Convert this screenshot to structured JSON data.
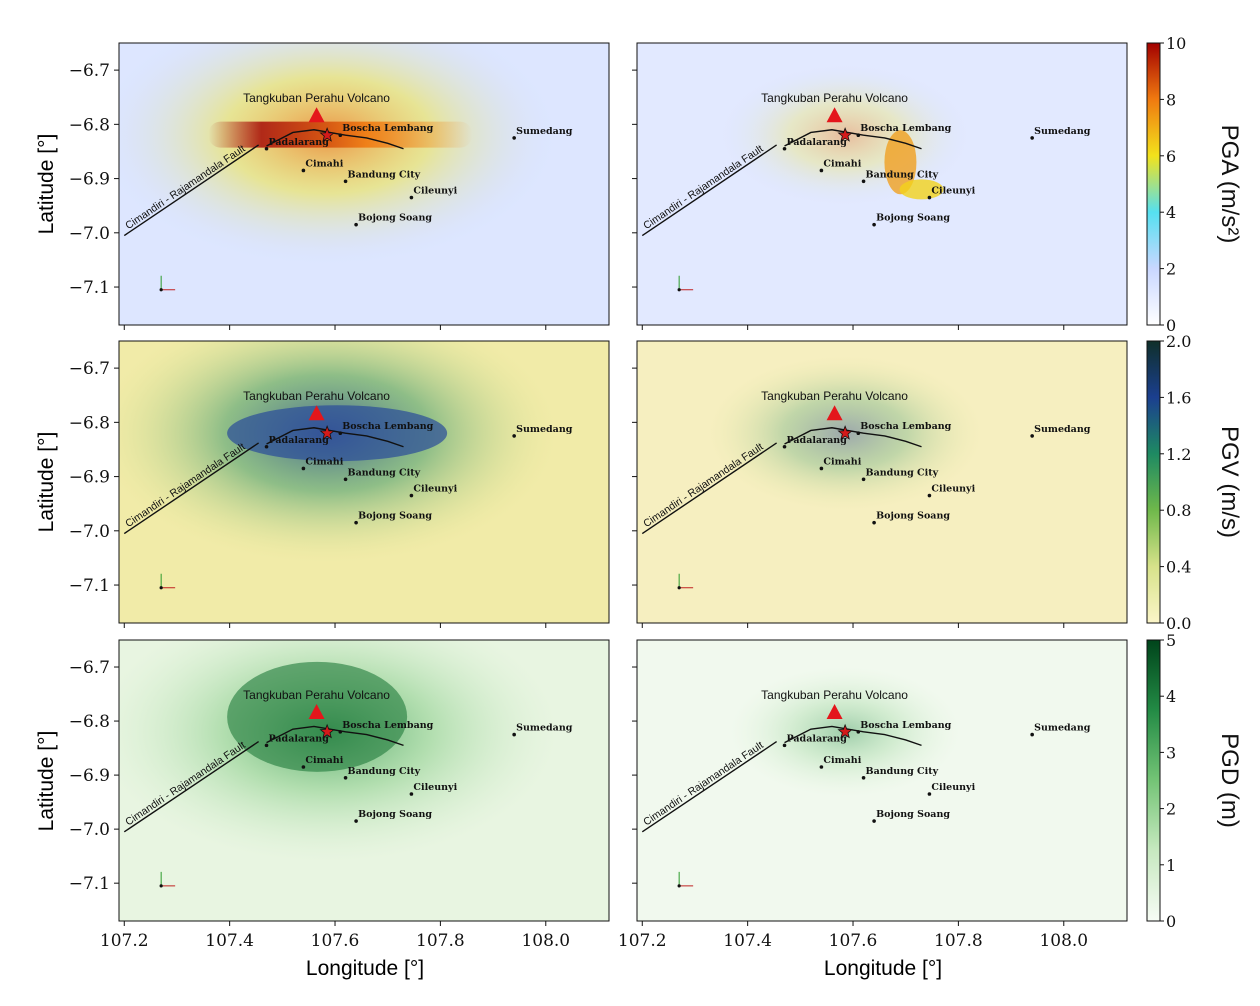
{
  "figure": {
    "xlabel": "Longitude [°]",
    "ylabel": "Latitude [°]",
    "x_ticks": [
      "107.2",
      "107.4",
      "107.6",
      "107.8",
      "108.0"
    ],
    "y_ticks": [
      "−6.7",
      "−6.8",
      "−6.9",
      "−7.0",
      "−7.1"
    ],
    "volcano_label": "Tangkuban Perahu Volcano",
    "fault_label": "Cimandiri - Rajamandala Fault"
  },
  "chart_data": [
    {
      "type": "heatmap",
      "title": "",
      "quantity": "PGA",
      "unit_label": "PGA (m/s²)",
      "colorbar_ticks": [
        "0",
        "2",
        "4",
        "6",
        "8",
        "10"
      ],
      "colorbar_range": [
        0,
        10
      ],
      "colormap": [
        "#ffffff",
        "#c9d7ff",
        "#55e0f0",
        "#f2e21c",
        "#f07a10",
        "#a20000"
      ],
      "xlim": [
        107.19,
        108.12
      ],
      "ylim": [
        -7.17,
        -6.65
      ],
      "panels": [
        "left",
        "right"
      ]
    },
    {
      "type": "heatmap",
      "title": "",
      "quantity": "PGV",
      "unit_label": "PGV (m/s)",
      "colorbar_ticks": [
        "0.0",
        "0.4",
        "0.8",
        "1.2",
        "1.6",
        "2.0"
      ],
      "colorbar_range": [
        0,
        2.0
      ],
      "colormap": [
        "#fbf5c8",
        "#d7e28a",
        "#6fb84b",
        "#1e8a62",
        "#1b3f8f",
        "#0f2f2a"
      ],
      "xlim": [
        107.19,
        108.12
      ],
      "ylim": [
        -7.17,
        -6.65
      ],
      "panels": [
        "left",
        "right"
      ]
    },
    {
      "type": "heatmap",
      "title": "",
      "quantity": "PGD",
      "unit_label": "PGD (m)",
      "colorbar_ticks": [
        "0",
        "1",
        "2",
        "3",
        "4",
        "5"
      ],
      "colorbar_range": [
        0,
        5
      ],
      "colormap": [
        "#f7fcf5",
        "#c7e9c0",
        "#74c476",
        "#238b45",
        "#00441b"
      ],
      "xlim": [
        107.19,
        108.12
      ],
      "ylim": [
        -7.17,
        -6.65
      ],
      "panels": [
        "left",
        "right"
      ]
    }
  ],
  "locations": [
    {
      "name": "Boscha Lembang",
      "lon": 107.61,
      "lat": -6.82
    },
    {
      "name": "Padalarang",
      "lon": 107.47,
      "lat": -6.845
    },
    {
      "name": "Cimahi",
      "lon": 107.54,
      "lat": -6.885
    },
    {
      "name": "Bandung City",
      "lon": 107.62,
      "lat": -6.905
    },
    {
      "name": "Cileunyi",
      "lon": 107.745,
      "lat": -6.935
    },
    {
      "name": "Bojong Soang",
      "lon": 107.64,
      "lat": -6.985
    },
    {
      "name": "Sumedang",
      "lon": 107.94,
      "lat": -6.825
    }
  ],
  "volcano": {
    "lon": 107.565,
    "lat": -6.785
  },
  "epicenter": {
    "lon": 107.585,
    "lat": -6.82
  }
}
